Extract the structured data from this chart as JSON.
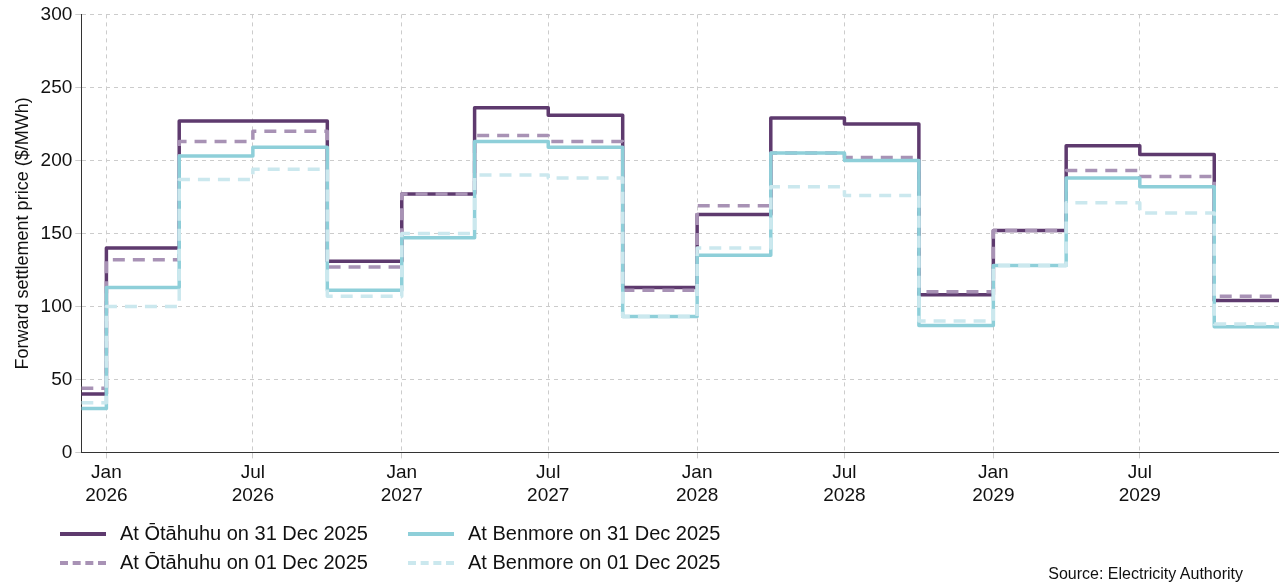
{
  "chart_data": {
    "type": "step",
    "ylabel": "Forward settlement price ($/MWh)",
    "x": [
      "2025-12-01",
      "2026-01-01",
      "2026-04-01",
      "2026-07-01",
      "2026-10-01",
      "2027-01-01",
      "2027-04-01",
      "2027-07-01",
      "2027-10-01",
      "2028-01-01",
      "2028-04-01",
      "2028-07-01",
      "2028-10-01",
      "2029-01-01",
      "2029-04-01",
      "2029-07-01",
      "2029-10-01",
      "2029-12-20"
    ],
    "series": [
      {
        "name": "At Ōtāhuhu on 31 Dec 2025",
        "color": "#5e3a6e",
        "line_style": "solid",
        "values": [
          40,
          140,
          227,
          227,
          131,
          177,
          236,
          231,
          113,
          163,
          229,
          225,
          108,
          152,
          210,
          204,
          104,
          104
        ]
      },
      {
        "name": "At Ōtāhuhu on 01 Dec 2025",
        "color": "#a892b5",
        "line_style": "dashed",
        "values": [
          44,
          132,
          213,
          220,
          127,
          177,
          217,
          213,
          111,
          169,
          205,
          202,
          110,
          152,
          193,
          189,
          107,
          107
        ]
      },
      {
        "name": "At Benmore on 31 Dec 2025",
        "color": "#8ecfd9",
        "line_style": "solid",
        "values": [
          30,
          113,
          203,
          209,
          111,
          147,
          213,
          209,
          93,
          135,
          205,
          200,
          87,
          128,
          188,
          182,
          86,
          86
        ]
      },
      {
        "name": "At Benmore on 01 Dec 2025",
        "color": "#cbe8ee",
        "line_style": "dashed",
        "values": [
          34,
          100,
          187,
          194,
          107,
          150,
          190,
          188,
          93,
          140,
          182,
          176,
          90,
          128,
          171,
          164,
          88,
          88
        ]
      }
    ],
    "xlim": [
      "2025-12-01",
      "2029-12-20"
    ],
    "xticks": [
      {
        "value": "2026-01-01",
        "label": "Jan 2026"
      },
      {
        "value": "2026-07-01",
        "label": "Jul 2026"
      },
      {
        "value": "2027-01-01",
        "label": "Jan 2027"
      },
      {
        "value": "2027-07-01",
        "label": "Jul 2027"
      },
      {
        "value": "2028-01-01",
        "label": "Jan 2028"
      },
      {
        "value": "2028-07-01",
        "label": "Jul 2028"
      },
      {
        "value": "2029-01-01",
        "label": "Jan 2029"
      },
      {
        "value": "2029-07-01",
        "label": "Jul 2029"
      }
    ],
    "ylim": [
      0,
      300
    ],
    "yticks": [
      0,
      50,
      100,
      150,
      200,
      250,
      300
    ],
    "grid": true,
    "legend": "bottom",
    "marker": "none",
    "annotations": [
      "Source: Electricity Authority"
    ]
  }
}
